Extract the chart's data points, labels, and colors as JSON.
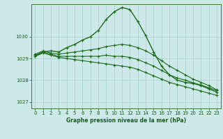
{
  "title": "Graphe pression niveau de la mer (hPa)",
  "background_color": "#cce8e8",
  "grid_color": "#aacece",
  "line_color": "#1a6b1a",
  "xlim": [
    -0.5,
    23.5
  ],
  "ylim": [
    1026.7,
    1031.5
  ],
  "yticks": [
    1027,
    1028,
    1029,
    1030
  ],
  "xticks": [
    0,
    1,
    2,
    3,
    4,
    5,
    6,
    7,
    8,
    9,
    10,
    11,
    12,
    13,
    14,
    15,
    16,
    17,
    18,
    19,
    20,
    21,
    22,
    23
  ],
  "series": [
    [
      1029.1,
      1029.3,
      1029.35,
      1029.3,
      1029.5,
      1029.65,
      1029.85,
      1030.0,
      1030.3,
      1030.8,
      1031.15,
      1031.35,
      1031.25,
      1030.7,
      1030.05,
      1029.3,
      1028.65,
      1028.25,
      1028.0,
      1027.9,
      1027.85,
      1027.75,
      1027.6,
      1027.45
    ],
    [
      1029.2,
      1029.35,
      1029.25,
      1029.2,
      1029.25,
      1029.3,
      1029.35,
      1029.4,
      1029.45,
      1029.55,
      1029.6,
      1029.65,
      1029.6,
      1029.5,
      1029.35,
      1029.15,
      1028.9,
      1028.65,
      1028.45,
      1028.25,
      1028.05,
      1027.9,
      1027.75,
      1027.55
    ],
    [
      1029.15,
      1029.3,
      1029.2,
      1029.1,
      1029.1,
      1029.1,
      1029.1,
      1029.1,
      1029.1,
      1029.15,
      1029.1,
      1029.1,
      1029.05,
      1028.95,
      1028.8,
      1028.65,
      1028.45,
      1028.25,
      1028.1,
      1028.0,
      1027.88,
      1027.78,
      1027.65,
      1027.52
    ],
    [
      1029.1,
      1029.25,
      1029.15,
      1029.05,
      1029.0,
      1028.95,
      1028.9,
      1028.85,
      1028.8,
      1028.75,
      1028.7,
      1028.65,
      1028.6,
      1028.5,
      1028.35,
      1028.2,
      1028.05,
      1027.9,
      1027.8,
      1027.7,
      1027.6,
      1027.5,
      1027.4,
      1027.3
    ]
  ]
}
